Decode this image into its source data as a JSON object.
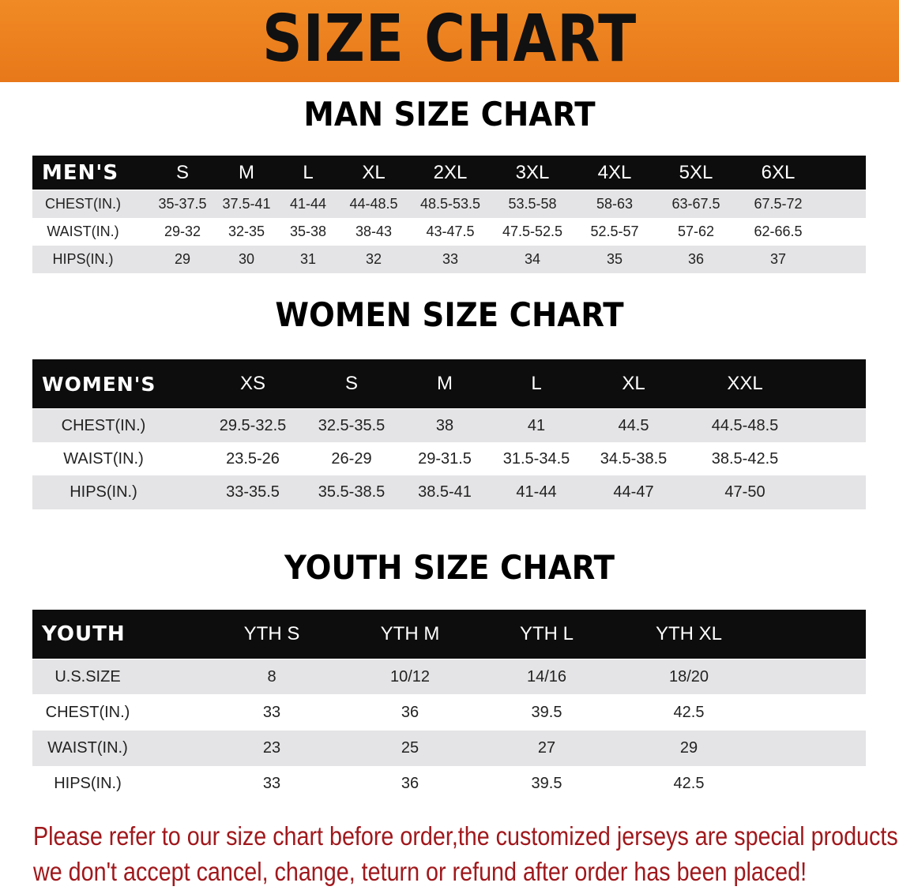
{
  "banner": {
    "title": "SIZE CHART",
    "color": "#ee8420"
  },
  "men": {
    "title": "MAN SIZE CHART",
    "header": [
      "MEN'S",
      "S",
      "M",
      "L",
      "XL",
      "2XL",
      "3XL",
      "4XL",
      "5XL",
      "6XL"
    ],
    "rows": [
      [
        "CHEST(IN.)",
        "35-37.5",
        "37.5-41",
        "41-44",
        "44-48.5",
        "48.5-53.5",
        "53.5-58",
        "58-63",
        "63-67.5",
        "67.5-72"
      ],
      [
        "WAIST(IN.)",
        "29-32",
        "32-35",
        "35-38",
        "38-43",
        "43-47.5",
        "47.5-52.5",
        "52.5-57",
        "57-62",
        "62-66.5"
      ],
      [
        "HIPS(IN.)",
        "29",
        "30",
        "31",
        "32",
        "33",
        "34",
        "35",
        "36",
        "37"
      ]
    ]
  },
  "women": {
    "title": "WOMEN SIZE CHART",
    "header": [
      "WOMEN'S",
      "XS",
      "S",
      "M",
      "L",
      "XL",
      "XXL"
    ],
    "rows": [
      [
        "CHEST(IN.)",
        "29.5-32.5",
        "32.5-35.5",
        "38",
        "41",
        "44.5",
        "44.5-48.5"
      ],
      [
        "WAIST(IN.)",
        "23.5-26",
        "26-29",
        "29-31.5",
        "31.5-34.5",
        "34.5-38.5",
        "38.5-42.5"
      ],
      [
        "HIPS(IN.)",
        "33-35.5",
        "35.5-38.5",
        "38.5-41",
        "41-44",
        "44-47",
        "47-50"
      ]
    ]
  },
  "youth": {
    "title": "YOUTH SIZE CHART",
    "header": [
      "YOUTH",
      "YTH S",
      "YTH M",
      "YTH L",
      "YTH XL"
    ],
    "rows": [
      [
        "U.S.SIZE",
        "8",
        "10/12",
        "14/16",
        "18/20"
      ],
      [
        "CHEST(IN.)",
        "33",
        "36",
        "39.5",
        "42.5"
      ],
      [
        "WAIST(IN.)",
        "23",
        "25",
        "27",
        "29"
      ],
      [
        "HIPS(IN.)",
        "33",
        "36",
        "39.5",
        "42.5"
      ]
    ]
  },
  "notice": {
    "line1": "Please refer to our size chart before order,the customized jerseys are special products,",
    "line2": "we don't accept cancel, change, teturn or refund after order has been placed!",
    "color": "#a0181c"
  }
}
